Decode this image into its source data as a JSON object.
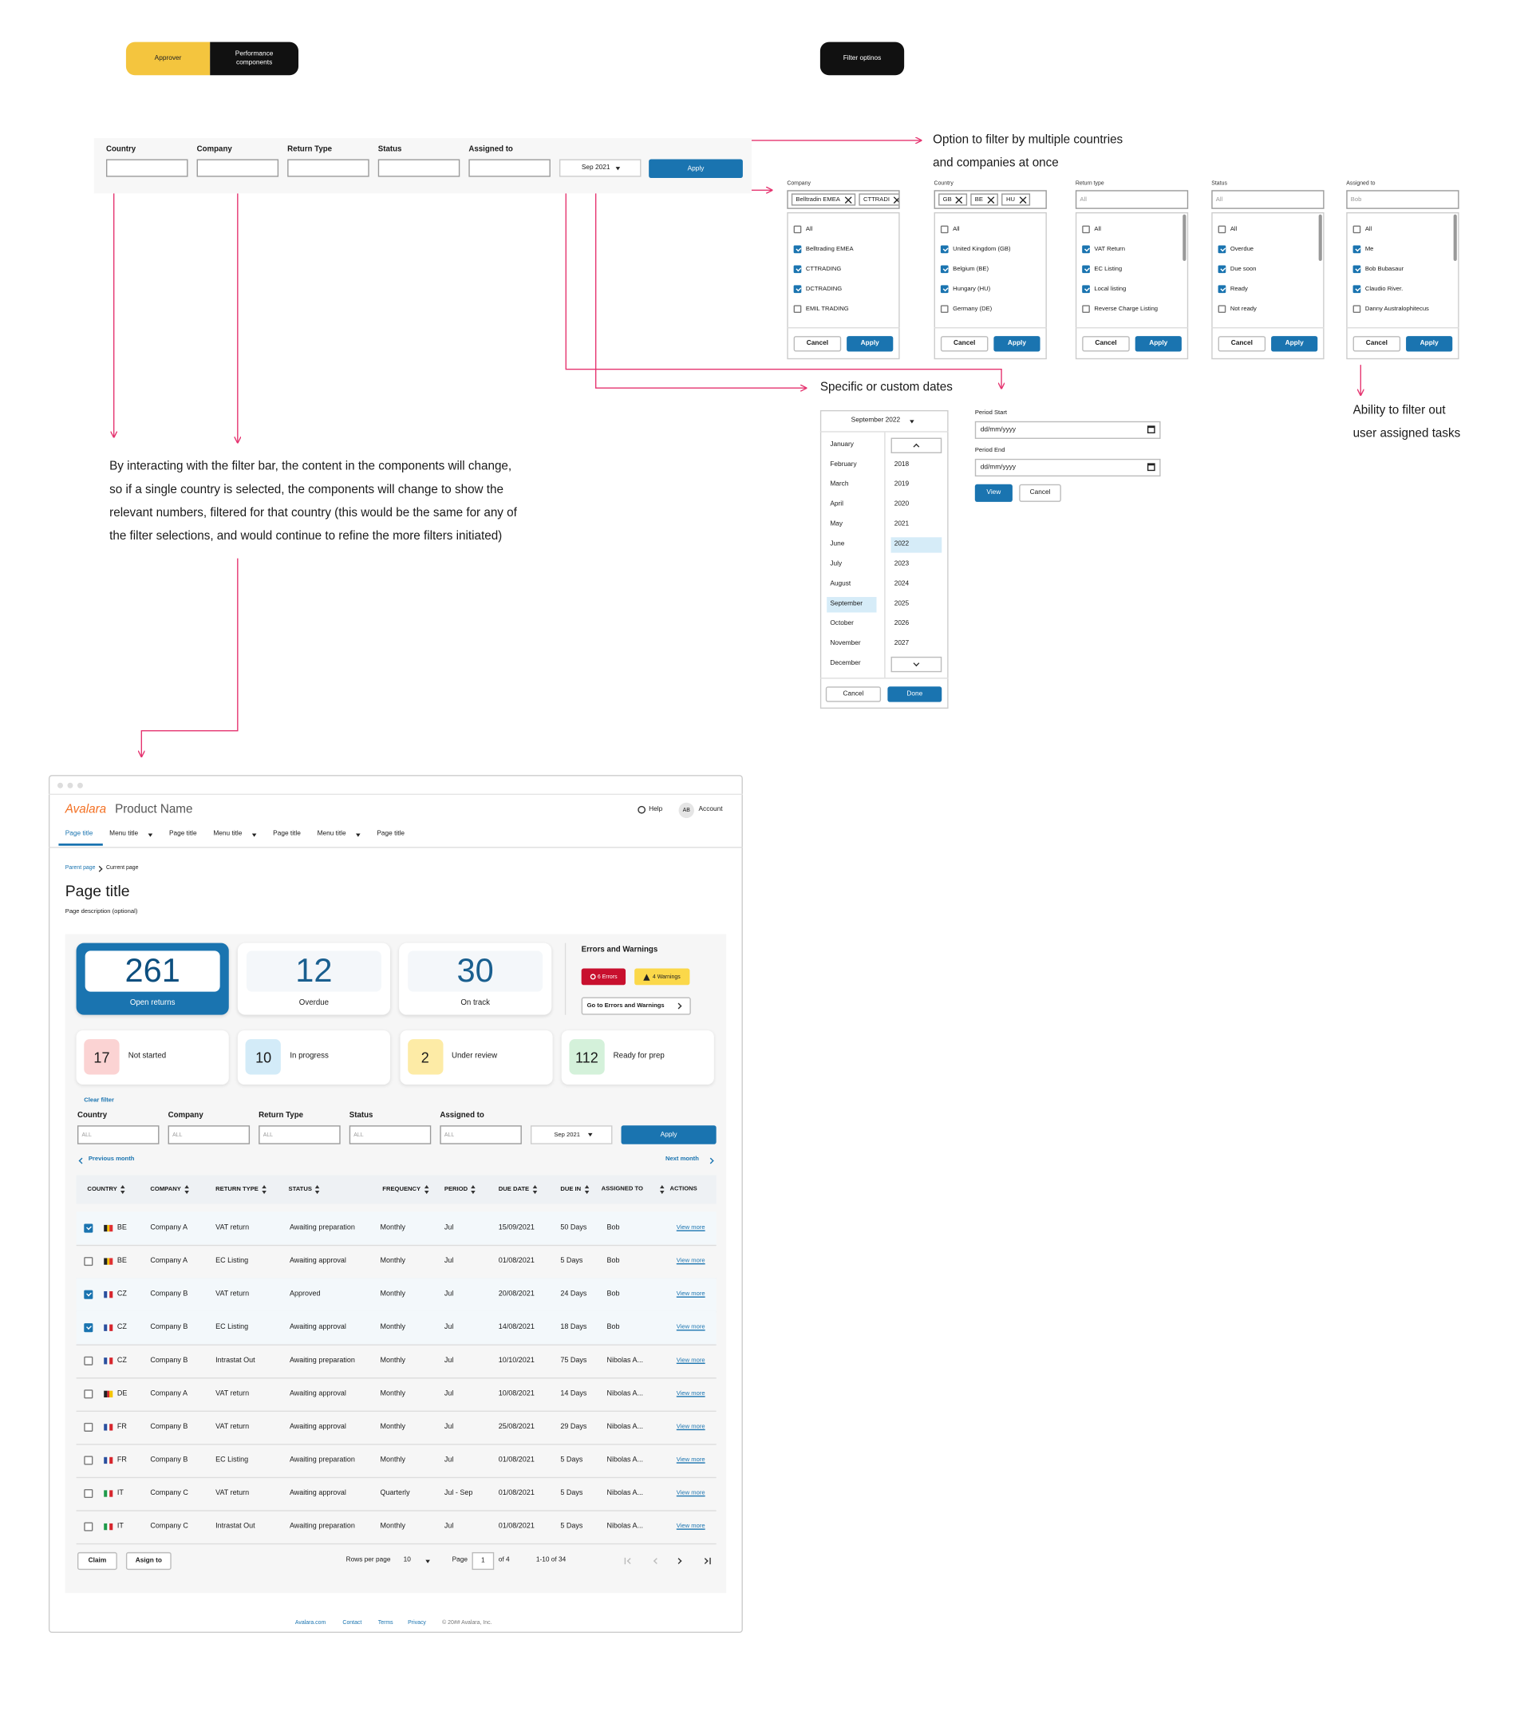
{
  "tabs": [
    "Approver",
    "Performance components"
  ],
  "filter_options_tab": "Filter optinos",
  "filter_bar": {
    "fields": [
      "Country",
      "Company",
      "Return Type",
      "Status",
      "Assigned to"
    ],
    "date": "Sep 2021",
    "apply": "Apply"
  },
  "annotations": {
    "multiple": [
      "Option to filter by multiple countries",
      "and companies at once"
    ],
    "dates": "Specific or custom dates",
    "assigned": [
      "Ability to filter out",
      "user assigned tasks"
    ],
    "interaction": "By interacting with the filter bar, the content in the components will change, so if a single country is selected, the components will change to show the relevant numbers, filtered for that country (this would be the same for any of the filter selections, and would continue to refine the more filters initiated)"
  },
  "dropdowns": [
    {
      "label": "Company",
      "chips": [
        "Belltradin EMEA",
        "CTTRADI"
      ],
      "options": [
        {
          "label": "All",
          "checked": false
        },
        {
          "label": "Belltrading EMEA",
          "checked": true
        },
        {
          "label": "CTTRADING",
          "checked": true
        },
        {
          "label": "DCTRADING",
          "checked": true
        },
        {
          "label": "EMIL TRADING",
          "checked": false
        }
      ],
      "cancel": "Cancel",
      "apply": "Apply"
    },
    {
      "label": "Country",
      "chips": [
        "GB",
        "BE",
        "HU"
      ],
      "options": [
        {
          "label": "All",
          "checked": false
        },
        {
          "label": "United Kingdom (GB)",
          "checked": true
        },
        {
          "label": "Belgium (BE)",
          "checked": true
        },
        {
          "label": "Hungary (HU)",
          "checked": true
        },
        {
          "label": "Germany (DE)",
          "checked": false
        }
      ],
      "cancel": "Cancel",
      "apply": "Apply"
    },
    {
      "label": "Return type",
      "placeholder": "All",
      "scrollbar": true,
      "options": [
        {
          "label": "All",
          "checked": false
        },
        {
          "label": "VAT Return",
          "checked": true
        },
        {
          "label": "EC Listing",
          "checked": true
        },
        {
          "label": "Local listing",
          "checked": true
        },
        {
          "label": "Reverse Charge Listing",
          "checked": false
        }
      ],
      "cancel": "Cancel",
      "apply": "Apply"
    },
    {
      "label": "Status",
      "placeholder": "All",
      "scrollbar": true,
      "options": [
        {
          "label": "All",
          "checked": false
        },
        {
          "label": "Overdue",
          "checked": true
        },
        {
          "label": "Due soon",
          "checked": true
        },
        {
          "label": "Ready",
          "checked": true
        },
        {
          "label": "Not ready",
          "checked": false
        }
      ],
      "cancel": "Cancel",
      "apply": "Apply"
    },
    {
      "label": "Assigned to",
      "placeholder": "Bob",
      "scrollbar": true,
      "options": [
        {
          "label": "All",
          "checked": false
        },
        {
          "label": "Me",
          "checked": true
        },
        {
          "label": "Bob Bubasaur",
          "checked": true
        },
        {
          "label": "Claudio River.",
          "checked": true
        },
        {
          "label": "Danny Australophitecus",
          "checked": false
        }
      ],
      "cancel": "Cancel",
      "apply": "Apply"
    }
  ],
  "date_picker": {
    "header": "September 2022",
    "months": [
      {
        "label": "January"
      },
      {
        "label": "February"
      },
      {
        "label": "March"
      },
      {
        "label": "April"
      },
      {
        "label": "May"
      },
      {
        "label": "June"
      },
      {
        "label": "July"
      },
      {
        "label": "August"
      },
      {
        "label": "September",
        "selected": true
      },
      {
        "label": "October"
      },
      {
        "label": "November"
      },
      {
        "label": "December"
      }
    ],
    "years": [
      {
        "label": "2018"
      },
      {
        "label": "2019"
      },
      {
        "label": "2020"
      },
      {
        "label": "2021"
      },
      {
        "label": "2022",
        "selected": true
      },
      {
        "label": "2023"
      },
      {
        "label": "2024"
      },
      {
        "label": "2025"
      },
      {
        "label": "2026"
      },
      {
        "label": "2027"
      }
    ],
    "cancel": "Cancel",
    "done": "Done"
  },
  "custom_dates": {
    "period_start_label": "Period Start",
    "period_start": "dd/mm/yyyy",
    "period_end_label": "Period End",
    "period_end": "dd/mm/yyyy",
    "view": "View",
    "cancel": "Cancel"
  },
  "app": {
    "brand": "Avalara",
    "product": "Product Name",
    "help": "Help",
    "avatar": "AB",
    "account": "Account",
    "nav": [
      {
        "label": "Page title",
        "active": true
      },
      {
        "label": "Menu title",
        "menu": true
      },
      {
        "label": "Page title"
      },
      {
        "label": "Menu title",
        "menu": true
      },
      {
        "label": "Page title"
      },
      {
        "label": "Menu title",
        "menu": true
      },
      {
        "label": "Page title"
      }
    ],
    "breadcrumb": [
      "Parent page",
      "Current page"
    ],
    "page_title": "Page title",
    "page_description": "Page description (optional)",
    "kpis": [
      {
        "value": 261,
        "label": "Open returns",
        "active": true
      },
      {
        "value": 12,
        "label": "Overdue"
      },
      {
        "value": 30,
        "label": "On track"
      }
    ],
    "errors_title": "Errors and Warnings",
    "errors": "6 Errors",
    "warnings": "4 Warnings",
    "errors_link": "Go to Errors and Warnings",
    "statuses": [
      {
        "value": 17,
        "label": "Not started",
        "color": "#fbd3d3"
      },
      {
        "value": 10,
        "label": "In progress",
        "color": "#d3ebf8"
      },
      {
        "value": 2,
        "label": "Under review",
        "color": "#fdeba6"
      },
      {
        "value": 112,
        "label": "Ready for prep",
        "color": "#d4f1da"
      }
    ],
    "clear_filter": "Clear filter",
    "filter": {
      "fields": [
        "Country",
        "Company",
        "Return Type",
        "Status",
        "Assigned to"
      ],
      "placeholder": "ALL",
      "date": "Sep 2021",
      "apply": "Apply"
    },
    "previous_month": "Previous month",
    "next_month": "Next month",
    "table": {
      "columns": [
        "COUNTRY",
        "COMPANY",
        "RETURN TYPE",
        "STATUS",
        "FREQUENCY",
        "PERIOD",
        "DUE DATE",
        "DUE IN",
        "ASSIGNED TO",
        "ACTIONS"
      ],
      "rows": [
        {
          "checked": true,
          "flag": [
            "#222",
            "#f5c400",
            "#e03030"
          ],
          "cells": [
            "BE",
            "Company A",
            "VAT return",
            "Awaiting preparation",
            "Monthly",
            "Jul",
            "15/09/2021",
            "50 Days",
            "Bob"
          ],
          "action": "View more"
        },
        {
          "checked": false,
          "flag": [
            "#222",
            "#f5c400",
            "#e03030"
          ],
          "cells": [
            "BE",
            "Company A",
            "EC Listing",
            "Awaiting approval",
            "Monthly",
            "Jul",
            "01/08/2021",
            "5 Days",
            "Bob"
          ],
          "action": "View more"
        },
        {
          "checked": true,
          "flag": [
            "#2a4f9e",
            "#ffffff",
            "#d7262d"
          ],
          "cells": [
            "CZ",
            "Company B",
            "VAT return",
            "Approved",
            "Monthly",
            "Jul",
            "20/08/2021",
            "24 Days",
            "Bob"
          ],
          "action": "View more"
        },
        {
          "checked": true,
          "flag": [
            "#2a4f9e",
            "#ffffff",
            "#d7262d"
          ],
          "cells": [
            "CZ",
            "Company B",
            "EC Listing",
            "Awaiting approval",
            "Monthly",
            "Jul",
            "14/08/2021",
            "18 Days",
            "Bob"
          ],
          "action": "View more"
        },
        {
          "checked": false,
          "flag": [
            "#2a4f9e",
            "#ffffff",
            "#d7262d"
          ],
          "cells": [
            "CZ",
            "Company B",
            "Intrastat Out",
            "Awaiting preparation",
            "Monthly",
            "Jul",
            "10/10/2021",
            "75 Days",
            "Nibolas A..."
          ],
          "action": "View more"
        },
        {
          "checked": false,
          "flag": [
            "#222",
            "#d7262d",
            "#f5c400"
          ],
          "cells": [
            "DE",
            "Company A",
            "VAT return",
            "Awaiting approval",
            "Monthly",
            "Jul",
            "10/08/2021",
            "14 Days",
            "Nibolas A..."
          ],
          "action": "View more"
        },
        {
          "checked": false,
          "flag": [
            "#2a4f9e",
            "#ffffff",
            "#d7262d"
          ],
          "cells": [
            "FR",
            "Company B",
            "VAT return",
            "Awaiting approval",
            "Monthly",
            "Jul",
            "25/08/2021",
            "29 Days",
            "Nibolas A..."
          ],
          "action": "View more"
        },
        {
          "checked": false,
          "flag": [
            "#2a4f9e",
            "#ffffff",
            "#d7262d"
          ],
          "cells": [
            "FR",
            "Company B",
            "EC Listing",
            "Awaiting preparation",
            "Monthly",
            "Jul",
            "01/08/2021",
            "5 Days",
            "Nibolas A..."
          ],
          "action": "View more"
        },
        {
          "checked": false,
          "flag": [
            "#1f9a4a",
            "#ffffff",
            "#d7262d"
          ],
          "cells": [
            "IT",
            "Company C",
            "VAT return",
            "Awaiting approval",
            "Quarterly",
            "Jul - Sep",
            "01/08/2021",
            "5 Days",
            "Nibolas A..."
          ],
          "action": "View more"
        },
        {
          "checked": false,
          "flag": [
            "#1f9a4a",
            "#ffffff",
            "#d7262d"
          ],
          "cells": [
            "IT",
            "Company C",
            "Intrastat Out",
            "Awaiting preparation",
            "Monthly",
            "Jul",
            "01/08/2021",
            "5 Days",
            "Nibolas A..."
          ],
          "action": "View more"
        }
      ]
    },
    "pagination": {
      "claim": "Claim",
      "assign": "Asign to",
      "rows_per_page": "Rows per page",
      "rows_value": "10",
      "page": "Page",
      "page_value": "1",
      "of": "of 4",
      "range": "1-10 of 34"
    },
    "footer": [
      "Avalara.com",
      "Contact",
      "Terms",
      "Privacy",
      "© 20## Avalara, Inc."
    ]
  }
}
